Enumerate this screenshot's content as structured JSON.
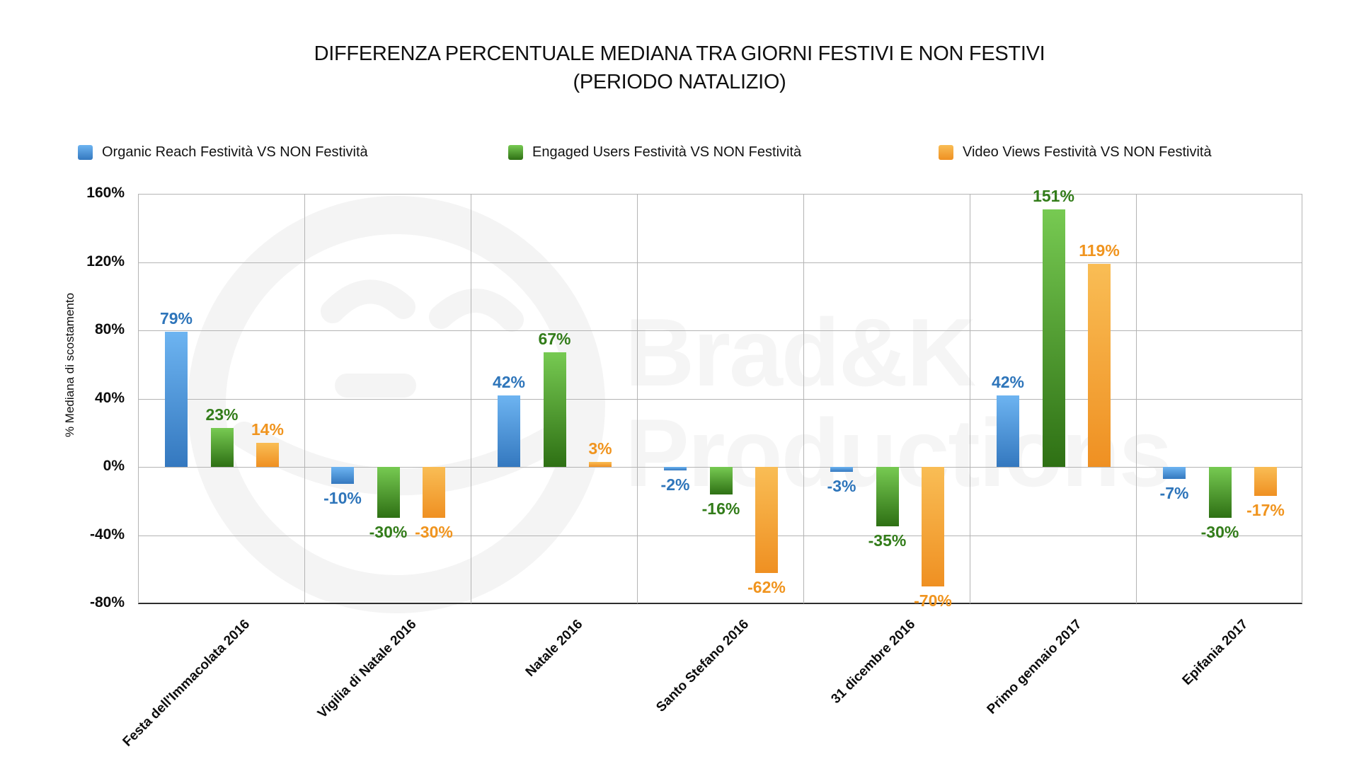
{
  "title": {
    "line1": "DIFFERENZA PERCENTUALE MEDIANA TRA GIORNI FESTIVI E NON FESTIVI",
    "line2": "(PERIODO NATALIZIO)"
  },
  "watermark": {
    "line1": "Brad&K",
    "line2": "Productions"
  },
  "chart_data": {
    "type": "bar",
    "title": "DIFFERENZA PERCENTUALE MEDIANA TRA GIORNI FESTIVI E NON FESTIVI (PERIODO NATALIZIO)",
    "ylabel": "% Mediana di scostamento",
    "ylim": [
      -80,
      160
    ],
    "ytick_values": [
      160,
      120,
      80,
      40,
      0,
      -40,
      -80
    ],
    "ytick_labels": [
      "160%",
      "120%",
      "80%",
      "40%",
      "0%",
      "-40%",
      "-80%"
    ],
    "grid": true,
    "legend_position": "top",
    "categories": [
      "Festa dell'Immacolata 2016",
      "Vigilia di Natale 2016",
      "Natale 2016",
      "Santo Stefano 2016",
      "31 dicembre 2016",
      "Primo gennaio 2017",
      "Epifania 2017"
    ],
    "series": [
      {
        "key": "organic-reach",
        "name": "Organic Reach Festività VS NON Festività",
        "color_top": "#6db4f1",
        "color_bottom": "#3478bf",
        "label_color": "#2e75ba",
        "values": [
          79,
          -10,
          42,
          -2,
          -3,
          42,
          -7
        ],
        "labels": [
          "79%",
          "-10%",
          "42%",
          "-2%",
          "-3%",
          "42%",
          "-7%"
        ]
      },
      {
        "key": "engaged-users",
        "name": "Engaged Users Festività VS NON Festività",
        "color_top": "#77ca52",
        "color_bottom": "#2e7014",
        "label_color": "#327c19",
        "values": [
          23,
          -30,
          67,
          -16,
          -35,
          151,
          -30
        ],
        "labels": [
          "23%",
          "-30%",
          "67%",
          "-16%",
          "-35%",
          "151%",
          "-30%"
        ]
      },
      {
        "key": "video-views",
        "name": "Video Views Festività VS NON Festività",
        "color_top": "#f9bd55",
        "color_bottom": "#ef9022",
        "label_color": "#f0941e",
        "values": [
          14,
          -30,
          3,
          -62,
          -70,
          119,
          -17
        ],
        "labels": [
          "14%",
          "-30%",
          "3%",
          "-62%",
          "-70%",
          "119%",
          "-17%"
        ]
      }
    ]
  }
}
